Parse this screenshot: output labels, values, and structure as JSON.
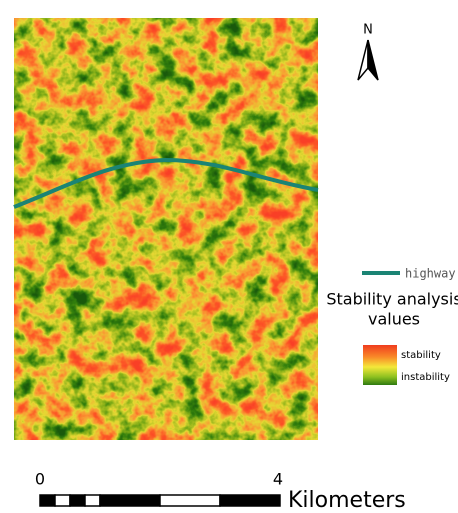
{
  "north_label": "N",
  "legend": {
    "highway": "highway",
    "title_line1": "Stability analysis",
    "title_line2": "values",
    "high": "stability",
    "low": "instability"
  },
  "scale_bar": {
    "labels": [
      0,
      4
    ],
    "unit": "Kilometers"
  }
}
